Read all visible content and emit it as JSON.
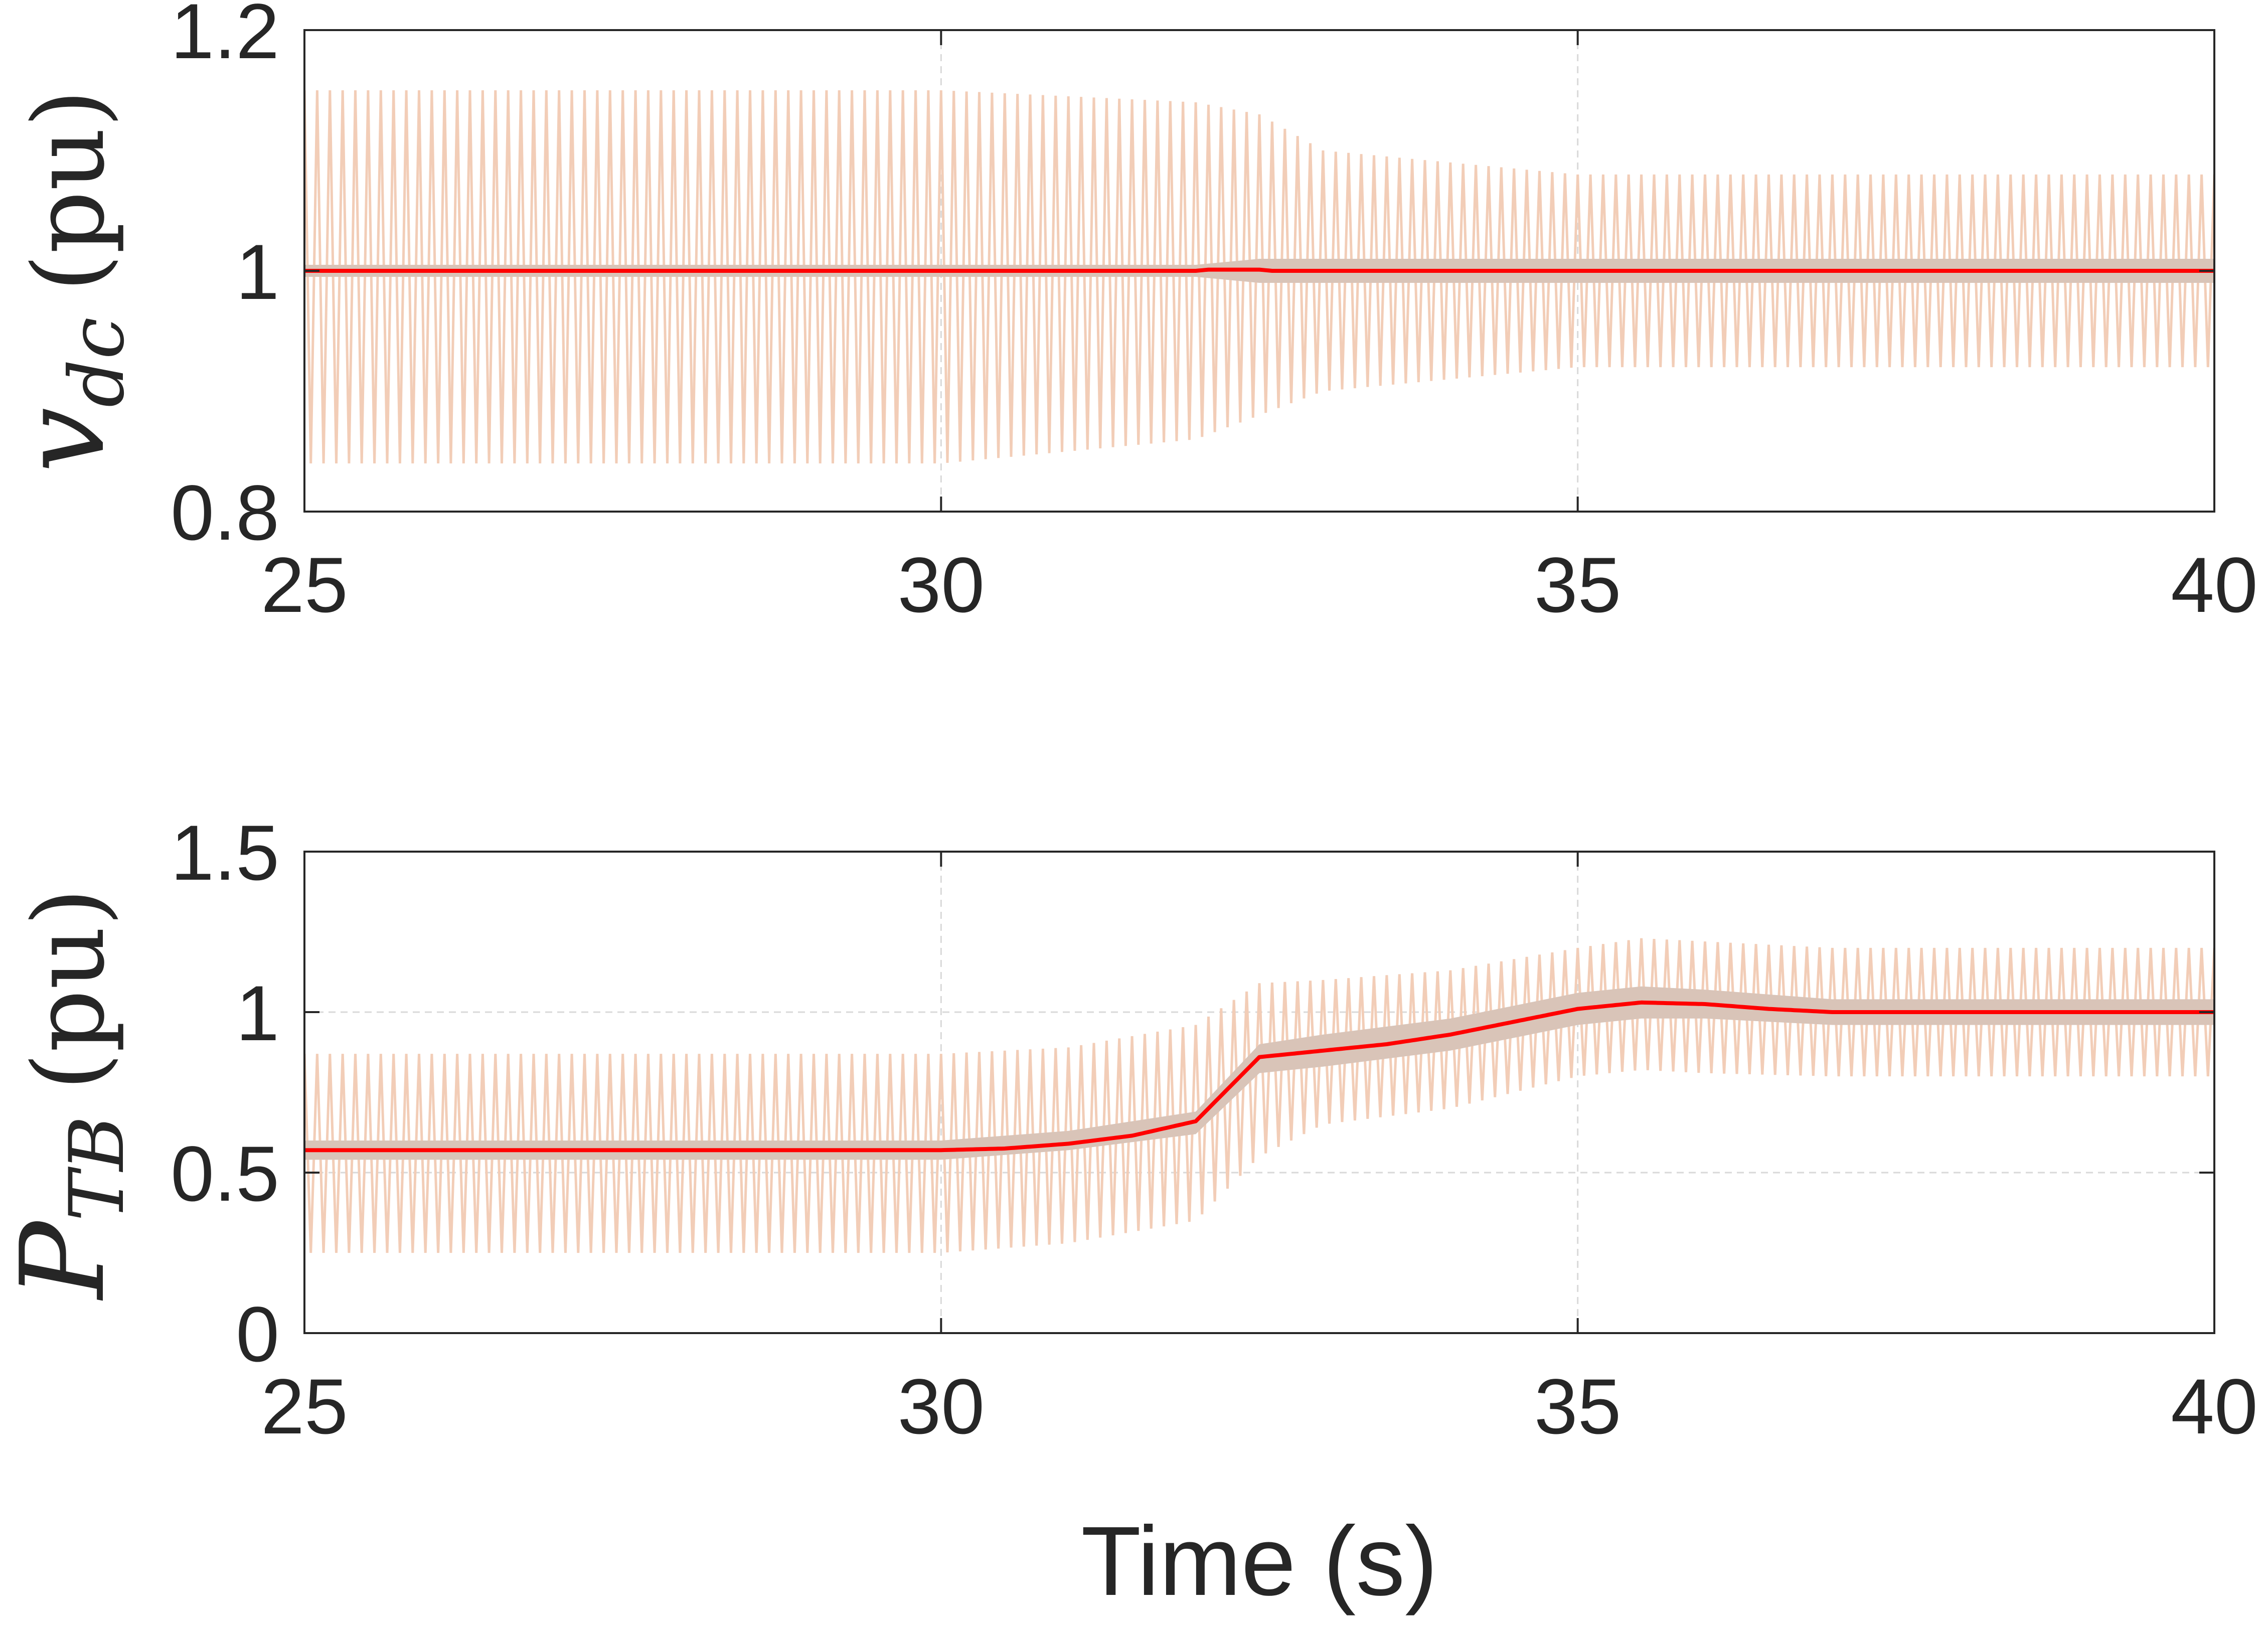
{
  "chart_data": [
    {
      "type": "line",
      "ylabel": {
        "symbol": "v",
        "subscript": "dc",
        "unit": "(pu)"
      },
      "xlim": [
        25,
        40
      ],
      "ylim": [
        0.8,
        1.2
      ],
      "xticks": [
        "25",
        "30",
        "35",
        "40"
      ],
      "yticks": [
        "0.8",
        "1",
        "1.2"
      ],
      "grid": true,
      "series": [
        {
          "role": "oscillating-envelope",
          "color": "#f2cdb7",
          "x": [
            25,
            30,
            32,
            32.5,
            33,
            34,
            35,
            35.5,
            40
          ],
          "upper": [
            1.15,
            1.15,
            1.14,
            1.13,
            1.1,
            1.09,
            1.08,
            1.08,
            1.08
          ],
          "lower": [
            0.84,
            0.84,
            0.86,
            0.88,
            0.9,
            0.91,
            0.92,
            0.92,
            0.92
          ]
        },
        {
          "role": "band",
          "color": "#d9c4b8",
          "x": [
            25,
            32,
            32.5,
            35,
            40
          ],
          "upper": [
            1.005,
            1.005,
            1.01,
            1.01,
            1.01
          ],
          "lower": [
            0.995,
            0.995,
            0.99,
            0.99,
            0.99
          ]
        },
        {
          "role": "mean",
          "color": "#ff0000",
          "x": [
            25,
            32,
            32.1,
            32.5,
            32.6,
            40
          ],
          "y": [
            1.0,
            1.0,
            1.001,
            1.001,
            1.0,
            1.0
          ]
        }
      ]
    },
    {
      "type": "line",
      "ylabel": {
        "symbol": "P",
        "subscript": "TB",
        "unit": "(pu)"
      },
      "xlim": [
        25,
        40
      ],
      "ylim": [
        0,
        1.5
      ],
      "xticks": [
        "25",
        "30",
        "35",
        "40"
      ],
      "yticks": [
        "0",
        "0.5",
        "1",
        "1.5"
      ],
      "xlabel": "Time (s)",
      "grid": true,
      "series": [
        {
          "role": "oscillating-envelope",
          "color": "#f2cdb7",
          "x": [
            25,
            30,
            31,
            32,
            32.5,
            33,
            34,
            35,
            35.5,
            36,
            37,
            40
          ],
          "upper": [
            0.87,
            0.87,
            0.89,
            0.96,
            1.09,
            1.1,
            1.13,
            1.2,
            1.23,
            1.22,
            1.2,
            1.2
          ],
          "lower": [
            0.25,
            0.25,
            0.28,
            0.35,
            0.55,
            0.65,
            0.7,
            0.8,
            0.82,
            0.81,
            0.8,
            0.8
          ]
        },
        {
          "role": "band",
          "color": "#d9c4b8",
          "x": [
            25,
            30,
            31,
            32,
            32.5,
            33,
            34,
            35,
            35.5,
            36,
            37,
            40
          ],
          "upper": [
            0.6,
            0.6,
            0.63,
            0.69,
            0.9,
            0.93,
            0.98,
            1.06,
            1.08,
            1.07,
            1.04,
            1.04
          ],
          "lower": [
            0.54,
            0.54,
            0.57,
            0.62,
            0.81,
            0.83,
            0.88,
            0.96,
            0.98,
            0.98,
            0.96,
            0.96
          ]
        },
        {
          "role": "mean",
          "color": "#ff0000",
          "x": [
            25,
            30,
            30.5,
            31,
            31.5,
            32,
            32.5,
            33,
            33.5,
            34,
            34.5,
            35,
            35.5,
            36,
            36.5,
            37,
            38,
            40
          ],
          "y": [
            0.57,
            0.57,
            0.575,
            0.59,
            0.615,
            0.66,
            0.86,
            0.88,
            0.9,
            0.93,
            0.97,
            1.01,
            1.03,
            1.025,
            1.01,
            1.0,
            1.0,
            1.0
          ]
        }
      ]
    }
  ]
}
